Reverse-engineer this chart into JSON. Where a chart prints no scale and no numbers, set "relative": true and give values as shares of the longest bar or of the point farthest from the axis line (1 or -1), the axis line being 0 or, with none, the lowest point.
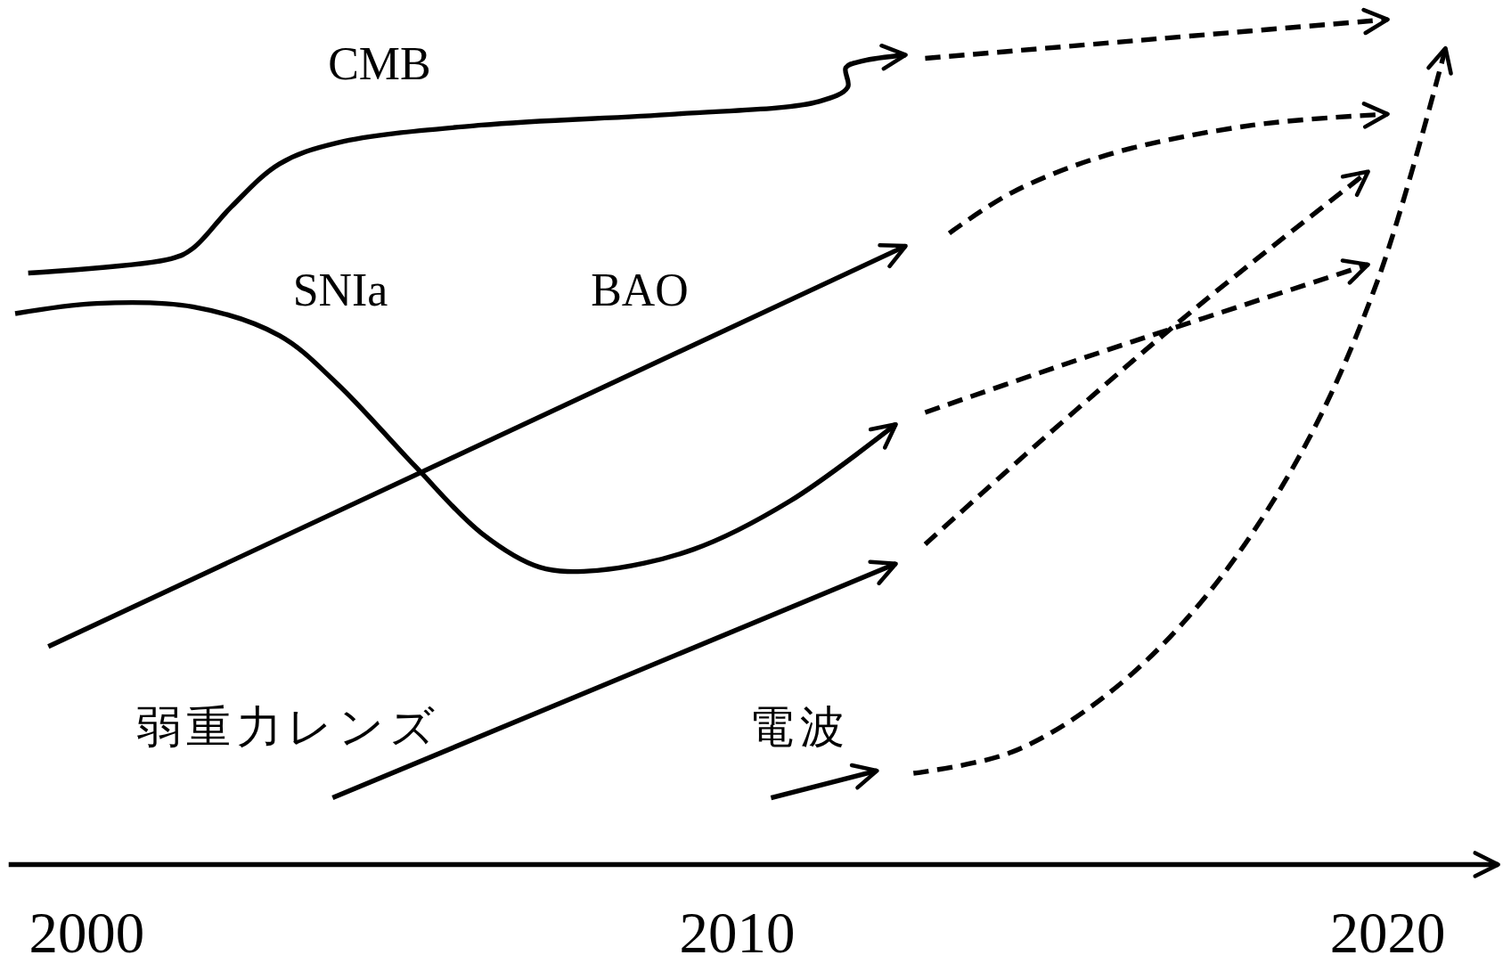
{
  "chart_data": {
    "type": "line",
    "relative": true,
    "xlim": [
      1998.8,
      2021.7
    ],
    "xticks": [
      2000,
      2010,
      2020
    ],
    "grid": false,
    "marker": "none",
    "series": [
      {
        "name": "CMB",
        "color": "#000000",
        "line_style": "solid",
        "x": [
          1999.1,
          2001.3,
          2001.63,
          2002.22,
          2002.96,
          2003.85,
          2006.07,
          2009.04,
          2011.26,
          2011.7,
          2011.67,
          2011.93,
          2012.59
        ],
        "values": [
          0.7,
          0.717,
          0.729,
          0.778,
          0.829,
          0.854,
          0.875,
          0.888,
          0.903,
          0.92,
          0.943,
          0.951,
          0.958
        ]
      },
      {
        "color": "#000000",
        "line_style": "dashed",
        "x": [
          2012.89,
          2016.44,
          2020.0
        ],
        "values": [
          0.954,
          0.977,
          1.0
        ]
      },
      {
        "name": "SNIa",
        "color": "#000000",
        "line_style": "solid",
        "x": [
          1998.9,
          2000.15,
          2001.63,
          2002.96,
          2003.85,
          2005.04,
          2006.07,
          2006.96,
          2007.85,
          2009.33,
          2010.81,
          2012.44
        ],
        "values": [
          0.652,
          0.664,
          0.66,
          0.626,
          0.569,
          0.472,
          0.392,
          0.352,
          0.348,
          0.373,
          0.43,
          0.521
        ]
      },
      {
        "color": "#000000",
        "line_style": "dashed",
        "x": [
          2012.89,
          2014.96,
          2017.19,
          2019.7
        ],
        "values": [
          0.535,
          0.59,
          0.647,
          0.71
        ]
      },
      {
        "name": "BAO",
        "color": "#000000",
        "line_style": "solid",
        "x": [
          1999.41,
          2012.59
        ],
        "values": [
          0.258,
          0.732
        ]
      },
      {
        "color": "#000000",
        "line_style": "dashed",
        "x": [
          2013.26,
          2014.22,
          2015.7,
          2017.93,
          2020.0
        ],
        "values": [
          0.747,
          0.795,
          0.84,
          0.875,
          0.888
        ]
      },
      {
        "name": "弱重力レンズ",
        "color": "#000000",
        "line_style": "solid",
        "x": [
          2003.78,
          2012.44
        ],
        "values": [
          0.079,
          0.356
        ]
      },
      {
        "color": "#000000",
        "line_style": "dashed",
        "x": [
          2012.89,
          2014.96,
          2017.04,
          2019.7
        ],
        "values": [
          0.379,
          0.521,
          0.658,
          0.82
        ]
      },
      {
        "name": "電波",
        "color": "#000000",
        "line_style": "solid",
        "x": [
          2010.52,
          2012.15
        ],
        "values": [
          0.079,
          0.111
        ]
      },
      {
        "color": "#000000",
        "line_style": "dashed",
        "x": [
          2012.71,
          2014.22,
          2015.7,
          2017.19,
          2018.67,
          2019.85,
          2020.89
        ],
        "values": [
          0.108,
          0.133,
          0.202,
          0.316,
          0.487,
          0.692,
          0.966
        ]
      }
    ]
  }
}
